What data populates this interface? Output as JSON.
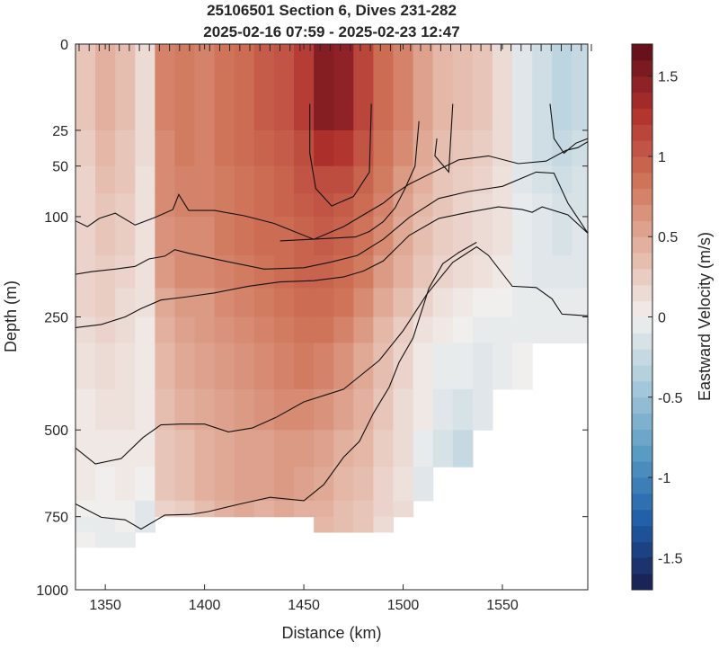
{
  "chart_data": {
    "type": "heatmap",
    "title_line1": "25106501 Section 6, Dives 231-282",
    "title_line2": "2025-02-16 07:59 - 2025-02-23 12:47",
    "xlabel": "Distance (km)",
    "ylabel": "Depth (m)",
    "colorbar_label": "Eastward Velocity (m/s)",
    "xlim": [
      1335,
      1593
    ],
    "x_ticks": [
      1350,
      1400,
      1450,
      1500,
      1550
    ],
    "x_tick_labels": [
      "1350",
      "1400",
      "1450",
      "1500",
      "1550"
    ],
    "y_scale": "sqrt",
    "ylim": [
      0,
      1000
    ],
    "y_ticks": [
      0,
      25,
      50,
      100,
      250,
      500,
      750,
      1000
    ],
    "y_tick_labels": [
      "0",
      "25",
      "50",
      "100",
      "250",
      "500",
      "750",
      "1000"
    ],
    "clim": [
      -1.7,
      1.7
    ],
    "c_ticks": [
      -1.5,
      -1,
      -0.5,
      0,
      0.5,
      1,
      1.5
    ],
    "c_tick_labels": [
      "-1.5",
      "-1",
      "-0.5",
      "0",
      "0.5",
      "1",
      "1.5"
    ],
    "colormap": "diverging red-white-blue (balance)",
    "colormap_stops": [
      "#1b1c4e",
      "#1f5da8",
      "#5a9bc4",
      "#a8cadb",
      "#f1efee",
      "#e4b4a3",
      "#cf7458",
      "#b1312d",
      "#5e0d1b"
    ],
    "dive_marks_at_top": true,
    "distance_bins_km": [
      1335,
      1345,
      1355,
      1365,
      1375,
      1385,
      1395,
      1405,
      1415,
      1425,
      1435,
      1445,
      1455,
      1465,
      1475,
      1485,
      1495,
      1505,
      1515,
      1525,
      1535,
      1545,
      1555,
      1565,
      1575,
      1585,
      1593
    ],
    "depth_bins_m": [
      0,
      25,
      50,
      75,
      100,
      150,
      200,
      250,
      300,
      400,
      500,
      600,
      700,
      750,
      800,
      850
    ],
    "profiles": [
      {
        "x": 1340,
        "v": [
          0.3,
          0.25,
          0.2,
          0.2,
          0.2,
          0.2,
          0.2,
          0.15,
          0.1,
          0.05,
          0.05,
          0.05,
          0.0,
          -0.05,
          0.0
        ]
      },
      {
        "x": 1350,
        "v": [
          0.45,
          0.4,
          0.35,
          0.3,
          0.3,
          0.25,
          0.25,
          0.2,
          0.15,
          0.1,
          0.05,
          0.0,
          0.0,
          -0.05,
          -0.05
        ]
      },
      {
        "x": 1360,
        "v": [
          0.35,
          0.3,
          0.3,
          0.25,
          0.25,
          0.2,
          0.15,
          0.15,
          0.1,
          0.1,
          0.05,
          0.05,
          0.0,
          0.0,
          -0.05
        ]
      },
      {
        "x": 1370,
        "v": [
          0.15,
          0.15,
          0.1,
          0.1,
          0.1,
          0.1,
          0.1,
          0.05,
          0.05,
          0.05,
          0.05,
          0.0,
          -0.1,
          -0.1,
          null
        ]
      },
      {
        "x": 1380,
        "v": [
          0.75,
          0.7,
          0.7,
          0.7,
          0.65,
          0.6,
          0.5,
          0.45,
          0.4,
          0.35,
          0.3,
          0.3,
          0.2,
          null,
          null
        ]
      },
      {
        "x": 1390,
        "v": [
          0.8,
          0.8,
          0.75,
          0.75,
          0.7,
          0.7,
          0.6,
          0.55,
          0.5,
          0.45,
          0.35,
          0.35,
          0.25,
          null,
          null
        ]
      },
      {
        "x": 1400,
        "v": [
          0.75,
          0.75,
          0.75,
          0.75,
          0.7,
          0.7,
          0.6,
          0.6,
          0.55,
          0.5,
          0.45,
          0.45,
          0.35,
          null,
          null
        ]
      },
      {
        "x": 1410,
        "v": [
          0.85,
          0.85,
          0.8,
          0.8,
          0.8,
          0.75,
          0.7,
          0.65,
          0.6,
          0.55,
          0.5,
          0.5,
          0.45,
          null,
          null
        ]
      },
      {
        "x": 1420,
        "v": [
          0.9,
          0.9,
          0.85,
          0.85,
          0.85,
          0.8,
          0.75,
          0.7,
          0.65,
          0.6,
          0.55,
          0.55,
          0.5,
          null,
          null
        ]
      },
      {
        "x": 1430,
        "v": [
          1.0,
          0.95,
          0.9,
          0.9,
          0.9,
          0.85,
          0.8,
          0.75,
          0.7,
          0.65,
          0.55,
          0.55,
          0.45,
          null,
          null
        ]
      },
      {
        "x": 1440,
        "v": [
          1.05,
          1.0,
          0.95,
          0.95,
          0.9,
          0.9,
          0.85,
          0.8,
          0.75,
          0.7,
          0.6,
          0.6,
          0.5,
          null,
          null
        ]
      },
      {
        "x": 1450,
        "v": [
          1.2,
          1.1,
          1.05,
          1.0,
          0.95,
          0.95,
          0.9,
          0.85,
          0.8,
          0.7,
          0.6,
          0.55,
          0.45,
          null,
          null
        ]
      },
      {
        "x": 1460,
        "v": [
          1.5,
          1.3,
          1.1,
          1.05,
          1.0,
          0.95,
          0.9,
          0.85,
          0.75,
          0.65,
          0.55,
          0.5,
          0.45,
          0.4,
          null
        ]
      },
      {
        "x": 1470,
        "v": [
          1.45,
          1.25,
          1.1,
          1.0,
          0.95,
          0.9,
          0.85,
          0.75,
          0.65,
          0.55,
          0.45,
          0.4,
          0.35,
          0.35,
          null
        ]
      },
      {
        "x": 1480,
        "v": [
          1.15,
          1.05,
          0.95,
          0.9,
          0.85,
          0.8,
          0.7,
          0.6,
          0.5,
          0.45,
          0.4,
          0.35,
          0.3,
          0.3,
          null
        ]
      },
      {
        "x": 1490,
        "v": [
          0.9,
          0.85,
          0.8,
          0.75,
          0.7,
          0.6,
          0.5,
          0.4,
          0.35,
          0.3,
          0.25,
          0.2,
          0.2,
          0.15,
          null
        ]
      },
      {
        "x": 1500,
        "v": [
          0.75,
          0.7,
          0.6,
          0.55,
          0.5,
          0.45,
          0.35,
          0.25,
          0.2,
          0.15,
          0.15,
          0.1,
          0.15,
          null,
          null
        ]
      },
      {
        "x": 1510,
        "v": [
          0.55,
          0.5,
          0.45,
          0.4,
          0.35,
          0.3,
          0.2,
          0.1,
          0.05,
          0.05,
          -0.05,
          -0.1,
          null,
          null,
          null
        ]
      },
      {
        "x": 1520,
        "v": [
          0.4,
          0.35,
          0.3,
          0.3,
          0.25,
          0.2,
          0.1,
          0.05,
          -0.05,
          -0.1,
          -0.15,
          null,
          null,
          null,
          null
        ]
      },
      {
        "x": 1530,
        "v": [
          0.35,
          0.3,
          0.25,
          0.2,
          0.2,
          0.15,
          0.05,
          0.0,
          -0.05,
          -0.15,
          -0.25,
          null,
          null,
          null,
          null
        ]
      },
      {
        "x": 1540,
        "v": [
          0.3,
          0.25,
          0.2,
          0.15,
          0.15,
          0.1,
          0.0,
          -0.05,
          -0.1,
          -0.1,
          null,
          null,
          null,
          null,
          null
        ]
      },
      {
        "x": 1550,
        "v": [
          0.15,
          0.15,
          0.1,
          0.1,
          0.1,
          0.05,
          0.0,
          -0.05,
          -0.05,
          null,
          null,
          null,
          null,
          null,
          null
        ]
      },
      {
        "x": 1560,
        "v": [
          -0.1,
          -0.1,
          -0.1,
          -0.05,
          -0.05,
          -0.05,
          -0.05,
          -0.05,
          0.0,
          null,
          null,
          null,
          null,
          null,
          null
        ]
      },
      {
        "x": 1570,
        "v": [
          -0.2,
          -0.2,
          -0.15,
          -0.1,
          -0.1,
          -0.1,
          -0.05,
          -0.05,
          null,
          null,
          null,
          null,
          null,
          null,
          null
        ]
      },
      {
        "x": 1580,
        "v": [
          -0.3,
          -0.25,
          -0.2,
          -0.15,
          -0.15,
          -0.1,
          -0.05,
          -0.05,
          null,
          null,
          null,
          null,
          null,
          null,
          null
        ]
      },
      {
        "x": 1589,
        "v": [
          -0.25,
          -0.2,
          -0.15,
          -0.15,
          -0.1,
          -0.1,
          -0.05,
          -0.05,
          null,
          null,
          null,
          null,
          null,
          null,
          null
        ]
      }
    ],
    "contours": [
      {
        "points": [
          [
            1335,
            105
          ],
          [
            1341,
            112
          ],
          [
            1347,
            102
          ],
          [
            1355,
            96
          ],
          [
            1365,
            110
          ],
          [
            1375,
            101
          ],
          [
            1384,
            92
          ],
          [
            1387,
            76
          ],
          [
            1392,
            93
          ],
          [
            1405,
            93
          ],
          [
            1420,
            99
          ],
          [
            1435,
            108
          ],
          [
            1455,
            128
          ],
          [
            1470,
            112
          ],
          [
            1480,
            98
          ],
          [
            1490,
            85
          ],
          [
            1496,
            75
          ],
          [
            1503,
            66
          ],
          [
            1513,
            57
          ],
          [
            1528,
            45
          ],
          [
            1543,
            42
          ],
          [
            1558,
            48
          ],
          [
            1572,
            46
          ],
          [
            1582,
            38
          ],
          [
            1588,
            36
          ],
          [
            1593,
            32
          ]
        ]
      },
      {
        "points": [
          [
            1335,
            178
          ],
          [
            1343,
            174
          ],
          [
            1355,
            170
          ],
          [
            1365,
            166
          ],
          [
            1372,
            155
          ],
          [
            1380,
            151
          ],
          [
            1385,
            142
          ],
          [
            1392,
            147
          ],
          [
            1410,
            158
          ],
          [
            1430,
            170
          ],
          [
            1450,
            168
          ],
          [
            1463,
            160
          ],
          [
            1477,
            150
          ],
          [
            1490,
            128
          ],
          [
            1503,
            101
          ],
          [
            1518,
            80
          ],
          [
            1533,
            73
          ],
          [
            1550,
            68
          ],
          [
            1567,
            55
          ],
          [
            1576,
            56
          ],
          [
            1583,
            85
          ],
          [
            1593,
            120
          ]
        ]
      },
      {
        "points": [
          [
            1335,
            270
          ],
          [
            1348,
            264
          ],
          [
            1360,
            250
          ],
          [
            1368,
            235
          ],
          [
            1378,
            220
          ],
          [
            1390,
            215
          ],
          [
            1405,
            208
          ],
          [
            1422,
            197
          ],
          [
            1438,
            190
          ],
          [
            1455,
            188
          ],
          [
            1470,
            182
          ],
          [
            1480,
            173
          ],
          [
            1490,
            158
          ],
          [
            1503,
            123
          ],
          [
            1518,
            102
          ],
          [
            1533,
            95
          ],
          [
            1548,
            89
          ],
          [
            1560,
            92
          ],
          [
            1565,
            95
          ],
          [
            1570,
            89
          ],
          [
            1583,
            98
          ],
          [
            1593,
            120
          ]
        ]
      },
      {
        "points": [
          [
            1335,
            548
          ],
          [
            1345,
            592
          ],
          [
            1358,
            577
          ],
          [
            1369,
            520
          ],
          [
            1378,
            487
          ],
          [
            1388,
            485
          ],
          [
            1400,
            485
          ],
          [
            1412,
            505
          ],
          [
            1424,
            495
          ],
          [
            1436,
            468
          ],
          [
            1450,
            430
          ],
          [
            1470,
            400
          ],
          [
            1488,
            336
          ],
          [
            1500,
            276
          ],
          [
            1512,
            210
          ],
          [
            1525,
            160
          ],
          [
            1537,
            138
          ],
          [
            1543,
            150
          ],
          [
            1555,
            197
          ],
          [
            1567,
            199
          ],
          [
            1575,
            218
          ],
          [
            1580,
            245
          ],
          [
            1593,
            248
          ]
        ]
      },
      {
        "points": [
          [
            1335,
            710
          ],
          [
            1348,
            752
          ],
          [
            1360,
            760
          ],
          [
            1368,
            790
          ],
          [
            1380,
            745
          ],
          [
            1393,
            743
          ],
          [
            1402,
            734
          ],
          [
            1418,
            710
          ],
          [
            1433,
            690
          ],
          [
            1450,
            700
          ],
          [
            1460,
            652
          ],
          [
            1470,
            573
          ],
          [
            1478,
            530
          ],
          [
            1485,
            458
          ],
          [
            1493,
            395
          ],
          [
            1498,
            340
          ],
          [
            1505,
            290
          ],
          [
            1513,
            200
          ],
          [
            1520,
            162
          ],
          [
            1528,
            146
          ],
          [
            1537,
            132
          ]
        ]
      },
      {
        "points": [
          [
            1438,
            130
          ],
          [
            1476,
            125
          ],
          [
            1483,
            118
          ],
          [
            1490,
            106
          ],
          [
            1496,
            90
          ],
          [
            1501,
            70
          ],
          [
            1506,
            50
          ],
          [
            1508,
            20
          ]
        ]
      },
      {
        "points": [
          [
            1453,
            12
          ],
          [
            1453,
            40
          ],
          [
            1456,
            70
          ],
          [
            1464,
            88
          ],
          [
            1475,
            78
          ],
          [
            1483,
            55
          ],
          [
            1484,
            12
          ]
        ]
      },
      {
        "points": [
          [
            1517,
            30
          ],
          [
            1516,
            42
          ],
          [
            1523,
            55
          ],
          [
            1525,
            12
          ]
        ]
      },
      {
        "points": [
          [
            1574,
            12
          ],
          [
            1576,
            30
          ],
          [
            1581,
            40
          ],
          [
            1587,
            33
          ],
          [
            1593,
            30
          ]
        ]
      }
    ]
  }
}
